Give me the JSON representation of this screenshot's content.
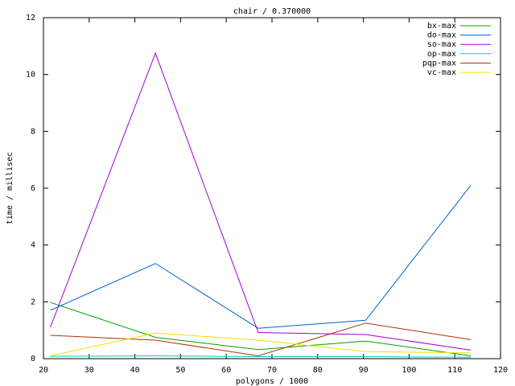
{
  "chart_data": {
    "type": "line",
    "title": "chair / 0.370000",
    "x_label": "polygons / 1000",
    "y_label": "time / millisec",
    "x": [
      21.5,
      44.5,
      67,
      90.5,
      113.5
    ],
    "xlim": [
      20,
      120
    ],
    "xticks": [
      20,
      30,
      40,
      50,
      60,
      70,
      80,
      90,
      100,
      110,
      120
    ],
    "ylim": [
      0,
      12
    ],
    "yticks": [
      0,
      2,
      4,
      6,
      8,
      10,
      12
    ],
    "legend_position": "upper right",
    "series": [
      {
        "name": "bx-max",
        "color": "#00a000",
        "values": [
          1.98,
          0.75,
          0.32,
          0.62,
          0.1
        ]
      },
      {
        "name": "do-max",
        "color": "#0060d0",
        "values": [
          1.7,
          3.35,
          1.07,
          1.35,
          6.1
        ]
      },
      {
        "name": "so-max",
        "color": "#a000d0",
        "values": [
          1.1,
          10.75,
          0.92,
          0.85,
          0.3
        ]
      },
      {
        "name": "op-max",
        "color": "#00c8c8",
        "values": [
          0.08,
          0.1,
          0.07,
          0.07,
          0.05
        ]
      },
      {
        "name": "pqp-max",
        "color": "#b03000",
        "values": [
          0.82,
          0.65,
          0.1,
          1.25,
          0.67
        ]
      },
      {
        "name": "vc-max",
        "color": "#f0e000",
        "values": [
          0.1,
          0.9,
          0.65,
          0.25,
          0.2
        ]
      }
    ]
  }
}
